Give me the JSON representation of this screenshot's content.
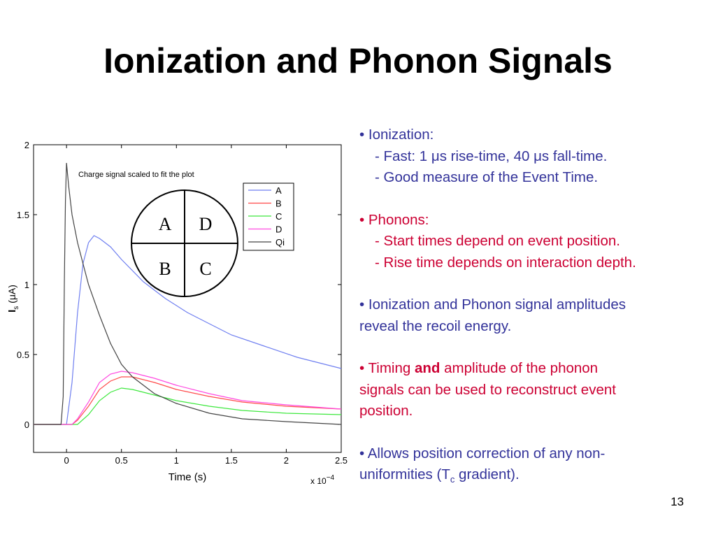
{
  "slide": {
    "title": "Ionization and Phonon Signals",
    "page_number": "13"
  },
  "bullets": {
    "ionization": {
      "head": "• Ionization:",
      "sub1": "- Fast: 1 μs rise-time, 40 μs fall-time.",
      "sub2": "- Good measure of the Event Time."
    },
    "phonons": {
      "head": "• Phonons:",
      "sub1": "- Start times depend on event position.",
      "sub2": "- Rise time depends on interaction depth."
    },
    "amplitudes": {
      "line1": "• Ionization and Phonon signal amplitudes",
      "line2": "reveal the recoil energy."
    },
    "timing": {
      "pre": "•  Timing ",
      "bold": "and",
      "post": " amplitude of the phonon",
      "line2": "signals can be used to reconstruct event",
      "line3": "position."
    },
    "position": {
      "line1": "• Allows position correction of any non-",
      "line2a": "uniformities (T",
      "line2sub": "c",
      "line2b": " gradient)."
    }
  },
  "colors": {
    "blue_text": "#33339a",
    "red_text": "#cc0033",
    "series_A": "#6f7ff0",
    "series_B": "#ff4a4a",
    "series_C": "#3ee83e",
    "series_D": "#ff48e0",
    "series_Qi": "#444444"
  },
  "chart_data": {
    "type": "line",
    "title": "",
    "annotation": "Charge signal scaled to fit the plot",
    "xlabel": "Time (s)",
    "x_multiplier": "x 10",
    "x_multiplier_exp": "−4",
    "ylabel_main": "I",
    "ylabel_sub": "s",
    "ylabel_rest": " (μA)",
    "xlim": [
      -0.3,
      2.5
    ],
    "ylim": [
      -0.2,
      2.0
    ],
    "xticks": [
      0,
      0.5,
      1,
      1.5,
      2,
      2.5
    ],
    "xtick_labels": [
      "0",
      "0.5",
      "1",
      "1.5",
      "2",
      "2.5"
    ],
    "yticks": [
      0,
      0.5,
      1,
      1.5,
      2
    ],
    "ytick_labels": [
      "0",
      "0.5",
      "1",
      "1.5",
      "2"
    ],
    "grid": false,
    "legend_position": "top-right",
    "inset_diagram": {
      "quadrants": [
        "A",
        "D",
        "B",
        "C"
      ]
    },
    "series": [
      {
        "name": "A",
        "color": "#6f7ff0",
        "x": [
          -0.3,
          0,
          0.05,
          0.1,
          0.15,
          0.2,
          0.25,
          0.3,
          0.4,
          0.5,
          0.7,
          0.9,
          1.1,
          1.3,
          1.5,
          1.8,
          2.1,
          2.5
        ],
        "y": [
          0,
          0,
          0.3,
          0.8,
          1.15,
          1.3,
          1.35,
          1.33,
          1.27,
          1.18,
          1.02,
          0.9,
          0.8,
          0.72,
          0.64,
          0.56,
          0.48,
          0.4
        ]
      },
      {
        "name": "B",
        "color": "#ff4a4a",
        "x": [
          -0.3,
          0.05,
          0.1,
          0.2,
          0.3,
          0.4,
          0.5,
          0.6,
          0.8,
          1.0,
          1.3,
          1.6,
          2.0,
          2.5
        ],
        "y": [
          0,
          0,
          0.03,
          0.13,
          0.25,
          0.31,
          0.34,
          0.34,
          0.3,
          0.25,
          0.2,
          0.16,
          0.13,
          0.11
        ]
      },
      {
        "name": "C",
        "color": "#3ee83e",
        "x": [
          -0.3,
          0.1,
          0.2,
          0.3,
          0.4,
          0.5,
          0.6,
          0.8,
          1.0,
          1.3,
          1.6,
          2.0,
          2.5
        ],
        "y": [
          0,
          0,
          0.07,
          0.17,
          0.23,
          0.26,
          0.25,
          0.21,
          0.17,
          0.13,
          0.1,
          0.08,
          0.07
        ]
      },
      {
        "name": "D",
        "color": "#ff48e0",
        "x": [
          -0.3,
          0.05,
          0.1,
          0.2,
          0.3,
          0.4,
          0.5,
          0.6,
          0.8,
          1.0,
          1.3,
          1.6,
          2.0,
          2.5
        ],
        "y": [
          0,
          0,
          0.04,
          0.16,
          0.3,
          0.36,
          0.38,
          0.37,
          0.33,
          0.28,
          0.22,
          0.17,
          0.14,
          0.11
        ]
      },
      {
        "name": "Qi",
        "color": "#444444",
        "x": [
          -0.3,
          -0.05,
          -0.03,
          -0.02,
          -0.01,
          0.0,
          0.02,
          0.05,
          0.1,
          0.15,
          0.2,
          0.3,
          0.4,
          0.5,
          0.6,
          0.8,
          1.0,
          1.3,
          1.6,
          2.0,
          2.5
        ],
        "y": [
          0,
          0,
          0.2,
          1.0,
          1.6,
          1.87,
          1.7,
          1.5,
          1.3,
          1.15,
          1.0,
          0.78,
          0.58,
          0.43,
          0.34,
          0.22,
          0.15,
          0.08,
          0.04,
          0.02,
          0.0
        ]
      }
    ]
  }
}
